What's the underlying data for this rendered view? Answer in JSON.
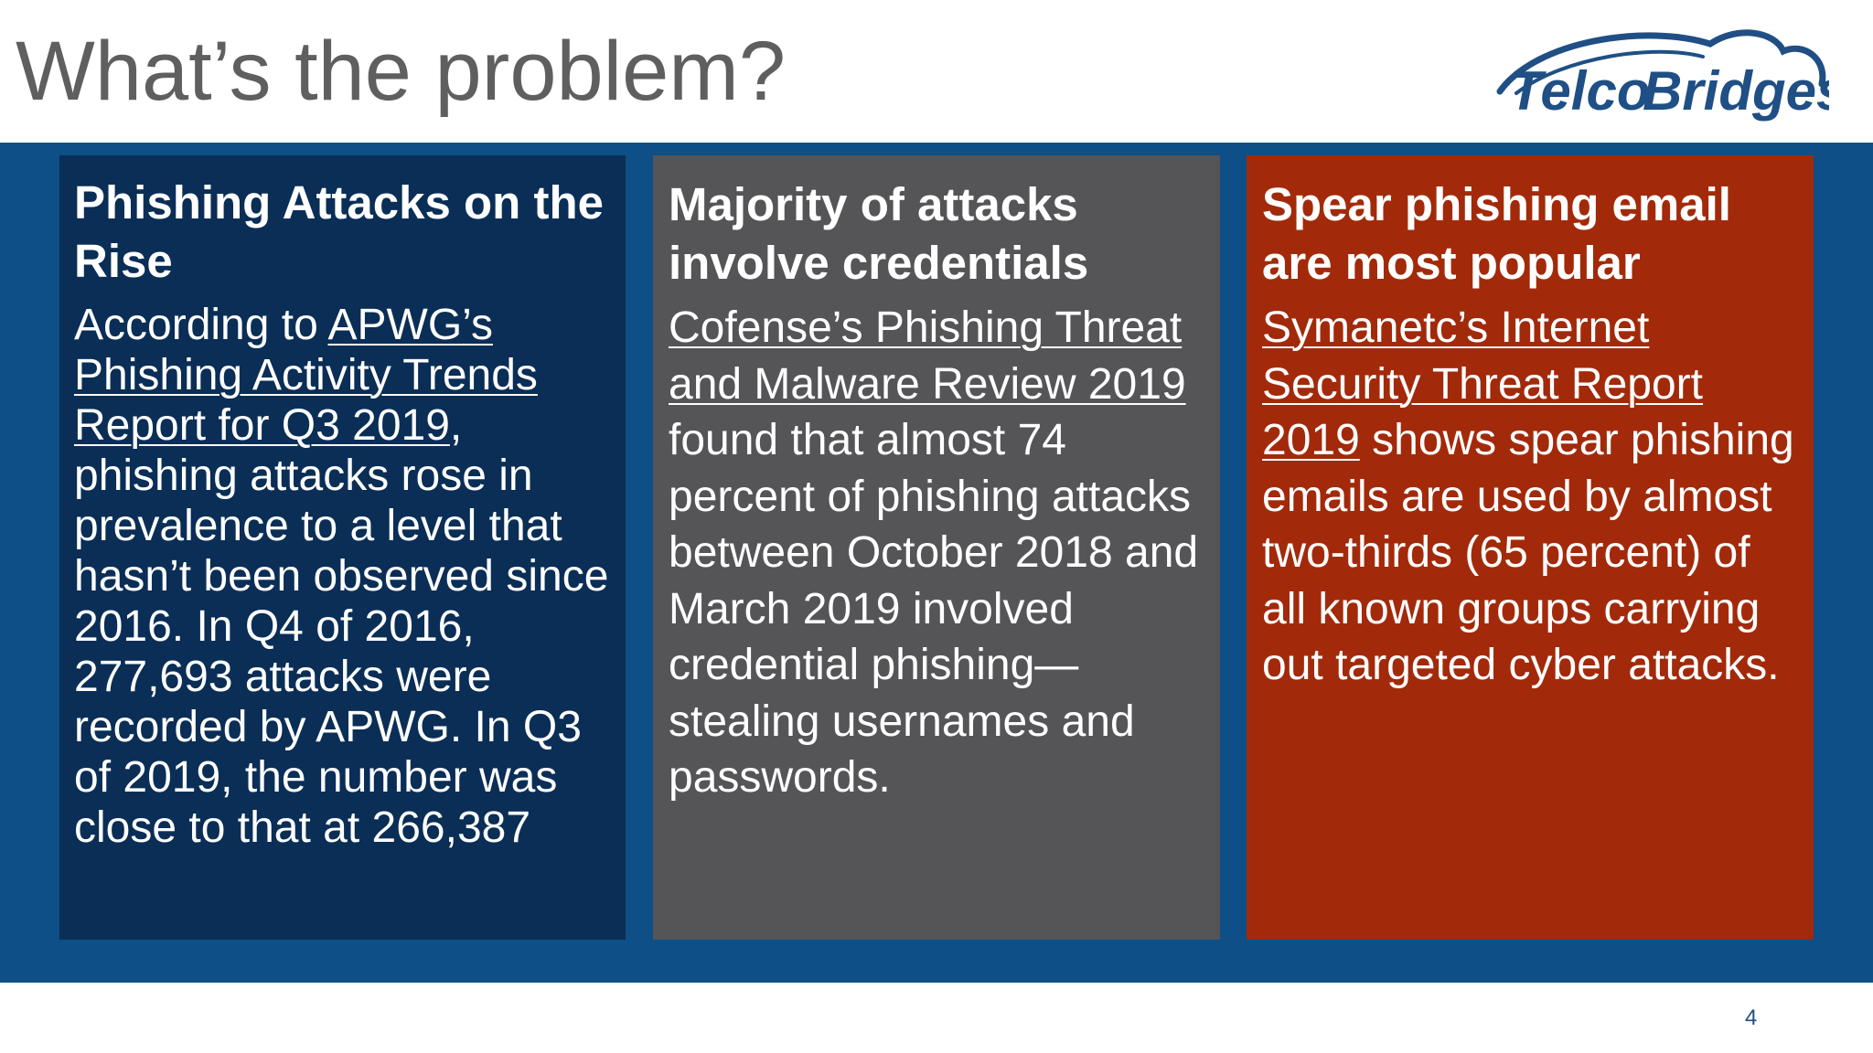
{
  "slide": {
    "title": "What’s the problem?",
    "page_number": "4",
    "logo": {
      "text_a": "Telco",
      "text_b": "Bridges",
      "icon": "telcobridges-logo"
    }
  },
  "panels": [
    {
      "title": "Phishing Attacks on the Rise",
      "body": {
        "pre": "According to ",
        "link": "APWG’s Phishing Activity Trends Report for Q3 2019",
        "post": ", phishing attacks rose in prevalence to a level that hasn’t been observed since 2016. In Q4 of 2016, 277,693 attacks were recorded by APWG. In Q3 of 2019, the number was close to that at 266,387"
      },
      "color": "#0a2e56"
    },
    {
      "title": "Majority of attacks involve credentials",
      "body": {
        "link": "Cofense’s Phishing Threat and Malware Review 2019",
        "post": " found that almost 74 percent of phishing attacks between October 2018 and March 2019 involved credential phishing—stealing usernames and passwords."
      },
      "color": "#555558"
    },
    {
      "title": "Spear phishing email are most popular",
      "body": {
        "link": "Symanetc’s Internet Security Threat Report 2019",
        "post": " shows spear phishing emails are used by almost two-thirds (65 percent) of all known groups carrying out targeted cyber attacks."
      },
      "color": "#a22a0a"
    }
  ],
  "colors": {
    "band": "#0d4f86",
    "title": "#5f5f5f",
    "logo": "#1f4f84"
  }
}
